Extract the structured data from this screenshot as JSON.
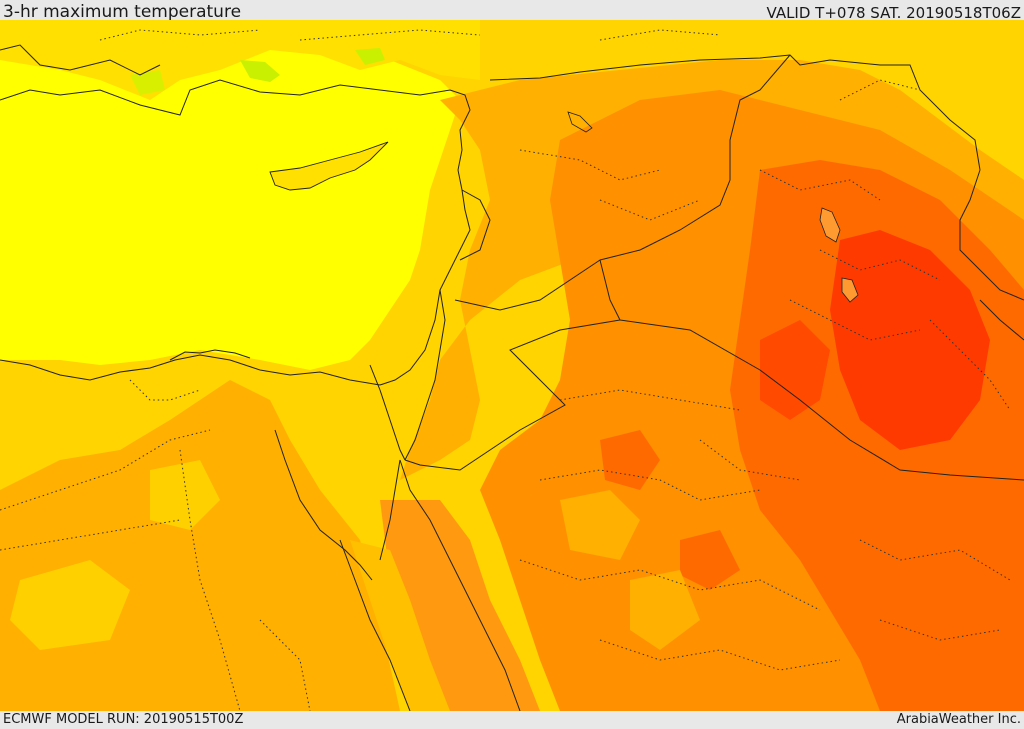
{
  "header": {
    "title": "3-hr maximum temperature",
    "valid": "VALID T+078 SAT. 20190518T06Z"
  },
  "footer": {
    "model_run": "ECMWF MODEL RUN: 20190515T00Z",
    "credit": "ArabiaWeather Inc."
  },
  "colors": {
    "coolest": "#ffff00",
    "cool": "#ffd800",
    "mild": "#ffb000",
    "warm": "#ff8c00",
    "hot": "#ff6000",
    "hottest": "#ff3000",
    "green_patch": "#c8f000",
    "border_line": "#222222"
  }
}
